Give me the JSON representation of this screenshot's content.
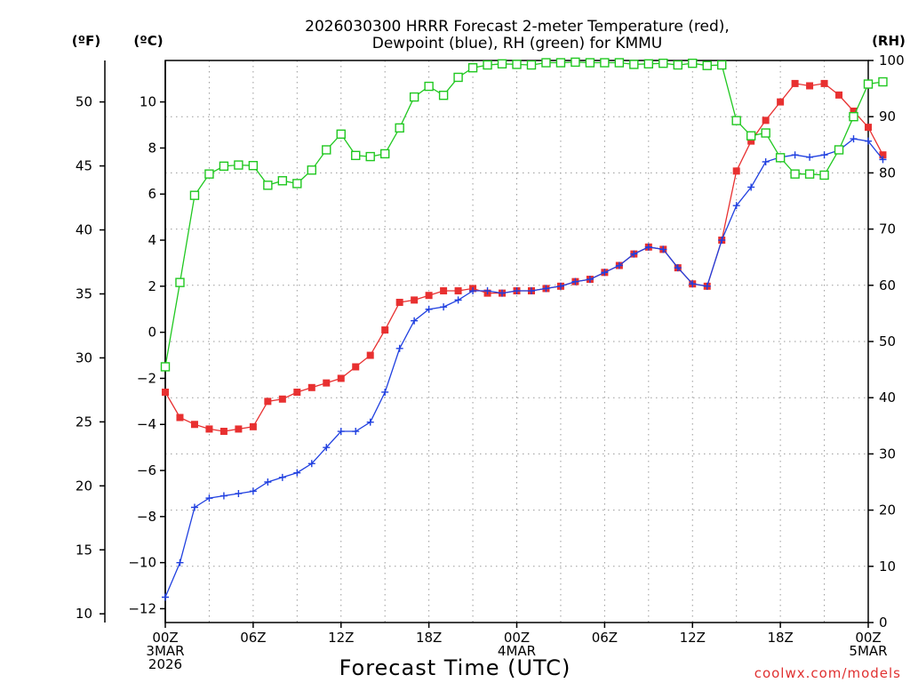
{
  "chart_data": {
    "type": "line",
    "title": [
      "2026030300 HRRR Forecast 2-meter Temperature (red),",
      "Dewpoint (blue), RH (green) for KMMU"
    ],
    "xlabel": "Forecast Time (UTC)",
    "credit": "coolwx.com/models",
    "unit_labels": {
      "fahrenheit": "(ºF)",
      "celsius": "(ºC)",
      "rh": "(RH)"
    },
    "x_range": [
      0,
      48
    ],
    "x_ticks": [
      {
        "x": 0,
        "label": [
          "00Z",
          "3MAR",
          "2026"
        ]
      },
      {
        "x": 6,
        "label": [
          "06Z"
        ]
      },
      {
        "x": 12,
        "label": [
          "12Z"
        ]
      },
      {
        "x": 18,
        "label": [
          "18Z"
        ]
      },
      {
        "x": 24,
        "label": [
          "00Z",
          "4MAR"
        ]
      },
      {
        "x": 30,
        "label": [
          "06Z"
        ]
      },
      {
        "x": 36,
        "label": [
          "12Z"
        ]
      },
      {
        "x": 42,
        "label": [
          "18Z"
        ]
      },
      {
        "x": 48,
        "label": [
          "00Z",
          "5MAR"
        ]
      }
    ],
    "celsius_axis": {
      "range": [
        -12.6,
        11.8
      ],
      "ticks": [
        -12,
        -10,
        -8,
        -6,
        -4,
        -2,
        0,
        2,
        4,
        6,
        8,
        10
      ]
    },
    "fahrenheit_axis": {
      "ticks": [
        10,
        15,
        20,
        25,
        30,
        35,
        40,
        45,
        50
      ]
    },
    "rh_axis": {
      "range": [
        0,
        100
      ],
      "ticks": [
        0,
        10,
        20,
        30,
        40,
        50,
        60,
        70,
        80,
        90,
        100
      ]
    },
    "grid": true,
    "colors": {
      "temperature": "#e83030",
      "dewpoint": "#2040e0",
      "rh": "#20c820",
      "axis": "#000000",
      "grid": "#9a9a9a",
      "credit": "#e03030"
    },
    "series": [
      {
        "key": "temperature",
        "axis": "celsius",
        "color": "#e83030",
        "marker": "filled-square",
        "values": [
          -2.6,
          -3.7,
          -4.0,
          -4.2,
          -4.3,
          -4.2,
          -4.1,
          -3.0,
          -2.9,
          -2.6,
          -2.4,
          -2.2,
          -2.0,
          -1.5,
          -1.0,
          0.1,
          1.3,
          1.4,
          1.6,
          1.8,
          1.8,
          1.9,
          1.7,
          1.7,
          1.8,
          1.8,
          1.9,
          2.0,
          2.2,
          2.3,
          2.6,
          2.9,
          3.4,
          3.7,
          3.6,
          2.8,
          2.1,
          2.0,
          4.0,
          7.0,
          8.3,
          9.2,
          10.0,
          10.8,
          10.7,
          10.8,
          10.3,
          9.6,
          8.9,
          7.7
        ]
      },
      {
        "key": "dewpoint",
        "axis": "celsius",
        "color": "#2040e0",
        "marker": "plus",
        "values": [
          -11.5,
          -10.0,
          -7.6,
          -7.2,
          -7.1,
          -7.0,
          -6.9,
          -6.5,
          -6.3,
          -6.1,
          -5.7,
          -5.0,
          -4.3,
          -4.3,
          -3.9,
          -2.6,
          -0.7,
          0.5,
          1.0,
          1.1,
          1.4,
          1.8,
          1.8,
          1.7,
          1.8,
          1.8,
          1.9,
          2.0,
          2.2,
          2.3,
          2.6,
          2.9,
          3.4,
          3.7,
          3.6,
          2.8,
          2.1,
          2.0,
          4.0,
          5.5,
          6.3,
          7.4,
          7.6,
          7.7,
          7.6,
          7.7,
          7.9,
          8.4,
          8.3,
          7.5
        ]
      },
      {
        "key": "rh",
        "axis": "rh",
        "color": "#20c820",
        "marker": "open-square",
        "values": [
          45.5,
          60.5,
          76,
          79.8,
          81.2,
          81.4,
          81.3,
          77.8,
          78.6,
          78.1,
          80.5,
          84.1,
          86.9,
          83.1,
          82.9,
          83.4,
          88,
          93.5,
          95.4,
          93.8,
          97,
          98.7,
          99.2,
          99.4,
          99.3,
          99.2,
          99.6,
          99.6,
          99.7,
          99.6,
          99.6,
          99.6,
          99.3,
          99.4,
          99.5,
          99.2,
          99.5,
          99.1,
          99.2,
          89.3,
          86.6,
          87.1,
          82.7,
          79.8,
          79.8,
          79.6,
          84.1,
          90,
          95.8,
          96.2
        ]
      }
    ]
  }
}
